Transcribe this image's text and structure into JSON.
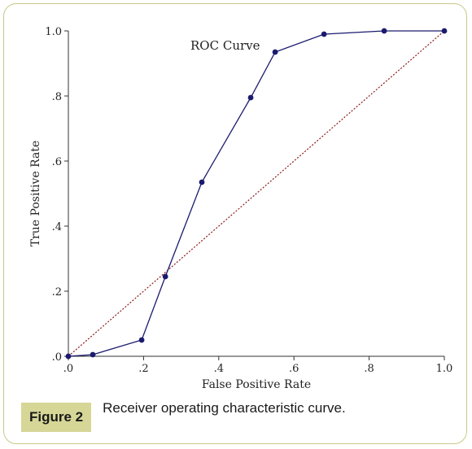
{
  "chart_data": {
    "type": "line",
    "annotation": "ROC Curve",
    "xlabel": "False Positive Rate",
    "ylabel": "True Positive Rate",
    "xlim": [
      0,
      1
    ],
    "ylim": [
      0,
      1
    ],
    "xticks": [
      ".0",
      ".2",
      ".4",
      ".6",
      ".8",
      "1.0"
    ],
    "yticks": [
      ".0",
      ".2",
      ".4",
      ".6",
      ".8",
      "1.0"
    ],
    "grid": false,
    "series": [
      {
        "x": [
          0.0,
          0.065,
          0.195,
          0.258,
          0.355,
          0.485,
          0.55,
          0.68,
          0.84,
          1.0
        ],
        "y": [
          0.0,
          0.005,
          0.05,
          0.245,
          0.535,
          0.795,
          0.935,
          0.99,
          1.0,
          1.0
        ],
        "color": "#1a1a6e",
        "style": "solid-markers"
      },
      {
        "x": [
          0.0,
          1.0
        ],
        "y": [
          0.0,
          1.0
        ],
        "color": "#8b1a1a",
        "style": "dotted"
      }
    ]
  },
  "caption": {
    "label": "Figure 2",
    "text": "Receiver operating characteristic curve."
  }
}
